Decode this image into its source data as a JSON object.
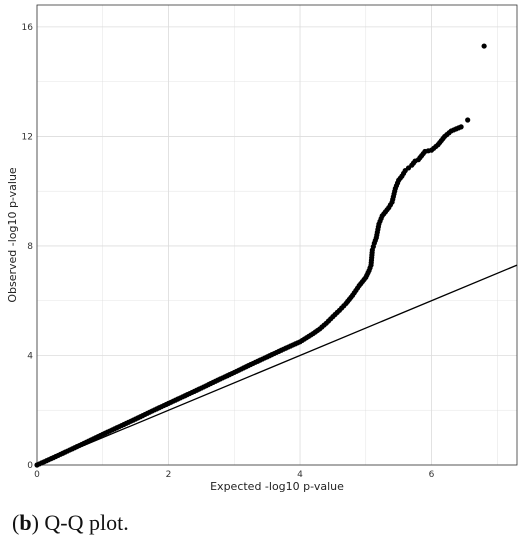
{
  "caption": {
    "label": "b",
    "text": ") Q-Q plot."
  },
  "chart_data": {
    "type": "scatter",
    "title": "",
    "xlabel": "Expected -log10 p-value",
    "ylabel": "Observed -log10 p-value",
    "xlim": [
      0,
      7.3
    ],
    "ylim": [
      0,
      16.8
    ],
    "x_ticks": [
      0,
      2,
      4,
      6
    ],
    "y_ticks": [
      0,
      4,
      8,
      12,
      16
    ],
    "grid": true,
    "reference_line": {
      "x": [
        0,
        7.3
      ],
      "y": [
        0,
        7.3
      ]
    },
    "series": [
      {
        "x": [
          0,
          0.25,
          0.5,
          0.75,
          1.0,
          1.25,
          1.5,
          1.75,
          2.0,
          2.25,
          2.5,
          2.75,
          3.0,
          3.25,
          3.5,
          3.75,
          4.0,
          4.1,
          4.2,
          4.3,
          4.4,
          4.5,
          4.6,
          4.7,
          4.8,
          4.9,
          5.0,
          5.05,
          5.08,
          5.1,
          5.13,
          5.16,
          5.2,
          5.25,
          5.3,
          5.35,
          5.4,
          5.45,
          5.5,
          5.55,
          5.6,
          5.65,
          5.7,
          5.75,
          5.8,
          5.85,
          5.9,
          6.0,
          6.1,
          6.2,
          6.3,
          6.45,
          6.55,
          6.8
        ],
        "y": [
          0,
          0.27,
          0.55,
          0.83,
          1.12,
          1.4,
          1.68,
          1.97,
          2.25,
          2.53,
          2.81,
          3.1,
          3.38,
          3.67,
          3.95,
          4.23,
          4.5,
          4.65,
          4.8,
          4.97,
          5.18,
          5.42,
          5.65,
          5.9,
          6.2,
          6.55,
          6.85,
          7.1,
          7.3,
          7.85,
          8.1,
          8.3,
          8.8,
          9.1,
          9.25,
          9.4,
          9.6,
          10.1,
          10.4,
          10.55,
          10.75,
          10.85,
          10.95,
          11.1,
          11.15,
          11.3,
          11.45,
          11.5,
          11.7,
          12.0,
          12.2,
          12.35,
          12.6,
          15.3
        ]
      }
    ]
  }
}
